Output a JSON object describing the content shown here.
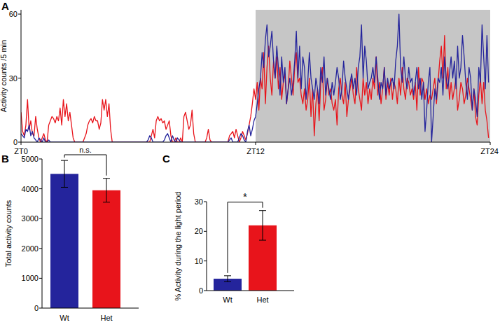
{
  "chart_data": [
    {
      "type": "line",
      "panel_label": "A",
      "y_label": "Activity counts /5 min",
      "x": [
        0,
        5,
        10,
        15,
        20,
        25,
        30,
        35,
        40,
        45,
        50,
        55,
        60,
        65,
        70,
        75,
        80,
        85,
        90,
        95,
        100,
        105,
        110,
        115,
        120,
        125,
        130,
        135,
        140,
        145,
        150,
        155,
        160,
        165,
        170,
        175,
        180,
        185,
        190,
        195,
        200,
        205,
        210,
        215,
        220,
        225,
        230,
        235,
        240,
        245,
        250,
        255,
        260,
        265,
        270,
        275,
        280,
        285,
        290,
        295,
        300,
        305,
        310,
        315,
        320,
        325,
        330,
        335,
        340,
        345,
        350,
        355,
        360,
        365,
        370,
        375,
        380,
        385,
        390,
        395,
        400,
        405,
        410,
        415,
        420,
        425,
        430,
        435,
        440,
        445,
        450,
        455,
        460,
        465,
        470,
        475,
        480,
        485,
        490,
        495,
        500,
        505,
        510,
        515,
        520,
        525,
        530,
        535,
        540,
        545,
        550,
        555,
        560,
        565,
        570,
        575,
        580,
        585,
        590,
        595,
        600,
        605,
        610,
        615,
        620,
        625,
        630,
        635,
        640,
        645,
        650,
        655,
        660,
        665,
        670,
        675,
        680,
        685,
        690,
        695,
        700,
        705,
        710,
        715,
        720,
        725,
        730,
        735,
        740,
        745,
        750,
        755,
        760,
        765,
        770,
        775,
        780,
        785,
        790,
        795,
        800,
        805,
        810,
        815,
        820,
        825,
        830,
        835,
        840,
        845,
        850,
        855,
        860,
        865,
        870,
        875,
        880,
        885,
        890,
        895,
        900,
        905,
        910,
        915,
        920,
        925,
        930,
        935,
        940,
        945,
        950,
        955,
        960,
        965,
        970,
        975,
        980,
        985,
        990,
        995,
        1000,
        1005,
        1010,
        1015,
        1020,
        1025,
        1030,
        1035,
        1040,
        1045,
        1050,
        1055,
        1060,
        1065,
        1070,
        1075,
        1080,
        1085,
        1090,
        1095,
        1100,
        1105,
        1110,
        1115,
        1120,
        1125,
        1130,
        1135,
        1140,
        1145,
        1150,
        1155,
        1160,
        1165,
        1170,
        1175,
        1180,
        1185,
        1190,
        1195,
        1200,
        1205,
        1210,
        1215,
        1220,
        1225,
        1230,
        1235,
        1240,
        1245,
        1250,
        1255,
        1260,
        1265,
        1270,
        1275,
        1280,
        1285,
        1290,
        1295,
        1300,
        1305,
        1310,
        1315,
        1320,
        1325,
        1330,
        1335,
        1340,
        1345,
        1350,
        1355,
        1360,
        1365,
        1370,
        1375,
        1380,
        1385,
        1390,
        1395,
        1400,
        1405,
        1410,
        1415,
        1420,
        1425,
        1430,
        1435
      ],
      "series": [
        {
          "color": "#e8141b",
          "values": [
            14,
            5,
            3,
            8,
            20,
            6,
            10,
            4,
            3,
            12,
            6,
            2,
            0,
            2,
            4,
            1,
            0,
            8,
            10,
            12,
            11,
            9,
            12,
            10,
            16,
            8,
            20,
            12,
            18,
            10,
            14,
            8,
            2,
            0,
            0,
            0,
            0,
            0,
            0,
            2,
            4,
            8,
            10,
            11,
            9,
            12,
            10,
            10,
            6,
            9,
            20,
            15,
            20,
            12,
            18,
            6,
            0,
            0,
            0,
            0,
            0,
            0,
            0,
            0,
            0,
            0,
            0,
            0,
            0,
            0,
            0,
            0,
            0,
            0,
            0,
            0,
            0,
            0,
            0,
            0,
            3,
            6,
            2,
            10,
            12,
            10,
            11,
            9,
            10,
            6,
            8,
            10,
            3,
            0,
            0,
            2,
            0,
            0,
            2,
            0,
            12,
            14,
            10,
            6,
            8,
            15,
            4,
            0,
            0,
            0,
            0,
            0,
            0,
            0,
            2,
            6,
            1,
            0,
            0,
            0,
            0,
            0,
            0,
            0,
            0,
            0,
            0,
            0,
            3,
            4,
            5,
            2,
            6,
            3,
            0,
            2,
            5,
            3,
            1,
            4,
            8,
            12,
            18,
            25,
            20,
            28,
            15,
            30,
            25,
            42,
            18,
            35,
            45,
            30,
            22,
            38,
            30,
            40,
            25,
            35,
            20,
            28,
            32,
            18,
            25,
            38,
            30,
            22,
            35,
            42,
            28,
            30,
            22,
            18,
            25,
            15,
            20,
            30,
            12,
            25,
            3,
            18,
            25,
            10,
            28,
            35,
            15,
            20,
            30,
            22,
            25,
            18,
            15,
            20,
            8,
            25,
            30,
            22,
            18,
            28,
            12,
            20,
            25,
            30,
            22,
            18,
            35,
            25,
            20,
            15,
            30,
            22,
            28,
            18,
            25,
            20,
            30,
            25,
            40,
            22,
            28,
            18,
            25,
            35,
            20,
            28,
            22,
            30,
            20,
            28,
            25,
            18,
            30,
            22,
            35,
            25,
            20,
            30,
            28,
            22,
            25,
            20,
            28,
            15,
            35,
            22,
            30,
            28,
            20,
            25,
            18,
            22,
            20,
            25,
            30,
            18,
            28,
            38,
            45,
            30,
            50,
            25,
            35,
            20,
            28,
            20,
            25,
            30,
            15,
            20,
            28,
            25,
            18,
            22,
            30,
            25,
            20,
            15,
            25,
            12,
            8,
            22,
            30,
            18,
            28,
            15,
            10,
            2
          ]
        },
        {
          "color": "#24249c",
          "values": [
            4,
            3,
            2,
            6,
            5,
            8,
            3,
            5,
            2,
            1,
            0,
            2,
            1,
            0,
            2,
            0,
            0,
            1,
            0,
            0,
            0,
            0,
            0,
            0,
            0,
            0,
            0,
            0,
            0,
            0,
            0,
            0,
            0,
            0,
            0,
            0,
            0,
            0,
            0,
            0,
            0,
            0,
            0,
            0,
            0,
            0,
            0,
            0,
            0,
            0,
            0,
            0,
            0,
            0,
            0,
            0,
            0,
            0,
            0,
            0,
            0,
            0,
            0,
            0,
            0,
            0,
            0,
            0,
            0,
            0,
            0,
            0,
            0,
            0,
            0,
            0,
            0,
            0,
            1,
            3,
            2,
            0,
            0,
            0,
            0,
            0,
            0,
            0,
            1,
            3,
            4,
            2,
            0,
            3,
            1,
            0,
            2,
            1,
            0,
            0,
            0,
            0,
            0,
            0,
            0,
            0,
            0,
            0,
            0,
            0,
            0,
            0,
            0,
            0,
            0,
            0,
            0,
            0,
            0,
            0,
            0,
            0,
            0,
            0,
            0,
            0,
            0,
            0,
            1,
            2,
            0,
            0,
            0,
            0,
            2,
            4,
            3,
            1,
            0,
            5,
            8,
            3,
            6,
            10,
            12,
            18,
            25,
            30,
            42,
            35,
            48,
            55,
            40,
            45,
            52,
            38,
            30,
            45,
            35,
            22,
            40,
            28,
            35,
            18,
            25,
            30,
            22,
            28,
            38,
            52,
            30,
            45,
            25,
            40,
            35,
            20,
            28,
            42,
            30,
            25,
            20,
            30,
            25,
            18,
            35,
            28,
            40,
            22,
            30,
            25,
            20,
            28,
            22,
            28,
            35,
            30,
            20,
            25,
            38,
            30,
            25,
            20,
            28,
            32,
            25,
            30,
            22,
            35,
            40,
            55,
            30,
            45,
            38,
            25,
            28,
            30,
            35,
            28,
            40,
            30,
            20,
            28,
            25,
            35,
            22,
            30,
            25,
            28,
            30,
            25,
            38,
            45,
            60,
            35,
            28,
            40,
            30,
            25,
            35,
            28,
            30,
            22,
            28,
            35,
            25,
            30,
            20,
            28,
            5,
            15,
            28,
            35,
            0,
            12,
            25,
            20,
            30,
            28,
            35,
            22,
            40,
            30,
            25,
            32,
            40,
            30,
            38,
            25,
            45,
            30,
            35,
            50,
            40,
            28,
            20,
            35,
            30,
            15,
            25,
            20,
            12,
            35,
            28,
            55,
            40,
            25,
            50,
            28
          ]
        }
      ],
      "xlim": [
        0,
        1440
      ],
      "xticks": [
        {
          "value": 0,
          "label": "ZT0"
        },
        {
          "value": 720,
          "label": "ZT12"
        },
        {
          "value": 1440,
          "label": "ZT24"
        }
      ],
      "ylim": [
        0,
        62
      ],
      "yticks": [
        0,
        30,
        60
      ],
      "dark_period": [
        720,
        1440
      ]
    },
    {
      "type": "bar",
      "panel_label": "B",
      "y_label": "Total activity counts",
      "categories": [
        "Wt",
        "Het"
      ],
      "values": [
        4500,
        3950
      ],
      "errors": [
        450,
        400
      ],
      "colors": [
        "#24249c",
        "#e8141b"
      ],
      "ylim": [
        0,
        5000
      ],
      "yticks": [
        0,
        1000,
        2000,
        3000,
        4000,
        5000
      ],
      "annotations": [
        "n.s."
      ]
    },
    {
      "type": "bar",
      "panel_label": "C",
      "y_label": "% Activity during the light period",
      "categories": [
        "Wt",
        "Het"
      ],
      "values": [
        4,
        22
      ],
      "errors": [
        1,
        5
      ],
      "colors": [
        "#24249c",
        "#e8141b"
      ],
      "ylim": [
        0,
        30
      ],
      "yticks": [
        0,
        10,
        20,
        30
      ],
      "annotations": [
        "*"
      ]
    }
  ]
}
